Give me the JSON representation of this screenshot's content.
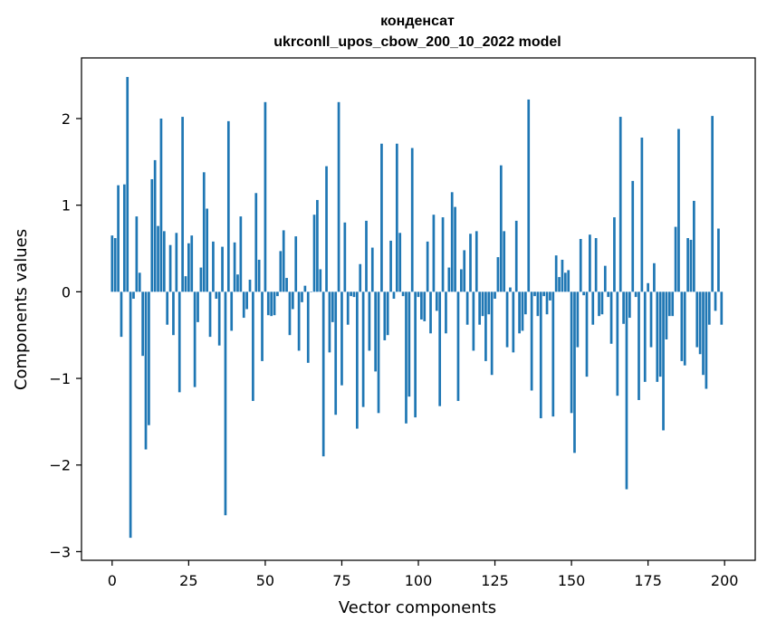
{
  "chart_data": {
    "type": "bar",
    "title_line1": "конденсат",
    "title_line2": "ukrconll_upos_cbow_200_10_2022 model",
    "xlabel": "Vector components",
    "ylabel": "Components values",
    "xlim": [
      -10,
      210
    ],
    "ylim": [
      -3.1,
      2.7
    ],
    "xticks": [
      0,
      25,
      50,
      75,
      100,
      125,
      150,
      175,
      200
    ],
    "yticks": [
      -3,
      -2,
      -1,
      0,
      1,
      2
    ],
    "ytick_labels": [
      "−3",
      "−2",
      "−1",
      "0",
      "1",
      "2"
    ],
    "grid": false,
    "bar_color": "#1f77b4",
    "values": [
      0.65,
      0.62,
      1.23,
      -0.52,
      1.24,
      2.48,
      -2.84,
      -0.08,
      0.87,
      0.22,
      -0.74,
      -1.82,
      -1.54,
      1.3,
      1.52,
      0.76,
      2.0,
      0.7,
      -0.38,
      0.54,
      -0.5,
      0.68,
      -1.16,
      2.02,
      0.18,
      0.56,
      0.65,
      -1.1,
      -0.35,
      0.28,
      1.38,
      0.96,
      -0.52,
      0.58,
      -0.08,
      -0.62,
      0.52,
      -2.58,
      1.97,
      -0.45,
      0.57,
      0.2,
      0.87,
      -0.3,
      -0.2,
      0.14,
      -1.26,
      1.14,
      0.37,
      -0.8,
      2.19,
      -0.27,
      -0.28,
      -0.27,
      -0.05,
      0.47,
      0.71,
      0.16,
      -0.5,
      -0.2,
      0.64,
      -0.68,
      -0.12,
      0.07,
      -0.82,
      0.0,
      0.89,
      1.06,
      0.26,
      -1.9,
      1.45,
      -0.7,
      -0.35,
      -1.42,
      2.19,
      -1.08,
      0.8,
      -0.38,
      -0.05,
      -0.06,
      -1.58,
      0.32,
      -1.33,
      0.82,
      -0.68,
      0.51,
      -0.92,
      -1.4,
      1.71,
      -0.56,
      -0.5,
      0.59,
      -0.08,
      1.71,
      0.68,
      -0.05,
      -1.52,
      -1.21,
      1.66,
      -1.45,
      -0.06,
      -0.32,
      -0.34,
      0.58,
      -0.48,
      0.89,
      -0.22,
      -1.32,
      0.86,
      -0.48,
      0.28,
      1.15,
      0.98,
      -1.26,
      0.26,
      0.48,
      -0.38,
      0.67,
      -0.68,
      0.7,
      -0.38,
      -0.28,
      -0.8,
      -0.26,
      -0.96,
      -0.08,
      0.4,
      1.46,
      0.7,
      -0.64,
      0.05,
      -0.7,
      0.82,
      -0.48,
      -0.45,
      -0.26,
      2.22,
      -1.14,
      -0.05,
      -0.28,
      -1.46,
      -0.05,
      -0.26,
      -0.1,
      -1.44,
      0.42,
      0.17,
      0.37,
      0.22,
      0.25,
      -1.4,
      -1.86,
      -0.64,
      0.61,
      -0.04,
      -0.98,
      0.66,
      -0.38,
      0.62,
      -0.28,
      -0.26,
      0.3,
      -0.06,
      -0.6,
      0.86,
      -1.2,
      2.02,
      -0.37,
      -2.28,
      -0.3,
      1.28,
      -0.06,
      -1.25,
      1.78,
      -1.04,
      0.1,
      -0.64,
      0.33,
      -1.04,
      -0.98,
      -1.6,
      -0.55,
      -0.28,
      -0.28,
      0.75,
      1.88,
      -0.8,
      -0.85,
      0.62,
      0.6,
      1.05,
      -0.64,
      -0.72,
      -0.96,
      -1.12,
      -0.38,
      2.03,
      -0.22,
      0.73,
      -0.38
    ]
  }
}
